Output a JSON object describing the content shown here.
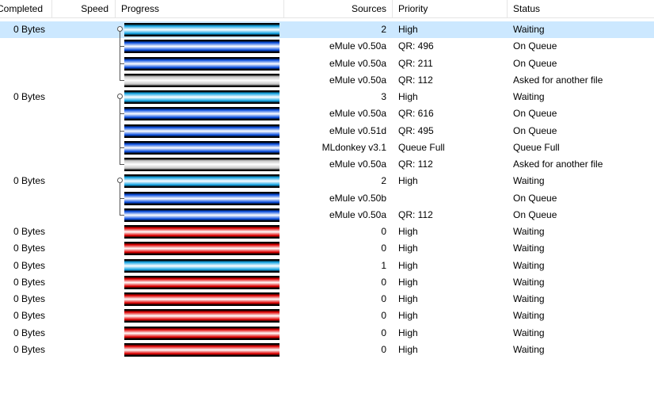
{
  "header": [
    "Completed",
    "Speed",
    "Progress",
    "Sources",
    "Priority",
    "Status"
  ],
  "files": [
    {
      "completed": "0 Bytes",
      "sources": 2,
      "priority": "High",
      "status": "Waiting",
      "bar": "#12a4e4",
      "selected": true,
      "children": [
        {
          "sources": "eMule v0.50a",
          "priority": "QR: 496",
          "status": "On Queue",
          "bar": "#0a4fe0"
        },
        {
          "sources": "eMule v0.50a",
          "priority": "QR: 211",
          "status": "On Queue",
          "bar": "#0a4fe0"
        },
        {
          "sources": "eMule v0.50a",
          "priority": "QR: 112",
          "status": "Asked for another file",
          "bar": "#c4c4c4"
        }
      ]
    },
    {
      "completed": "0 Bytes",
      "sources": 3,
      "priority": "High",
      "status": "Waiting",
      "bar": "#12a4e4",
      "children": [
        {
          "sources": "eMule v0.50a",
          "priority": "QR: 616",
          "status": "On Queue",
          "bar": "#0a4fe0"
        },
        {
          "sources": "eMule v0.51d",
          "priority": "QR: 495",
          "status": "On Queue",
          "bar": "#0a4fe0"
        },
        {
          "sources": "MLdonkey v3.1",
          "priority": "Queue Full",
          "status": "Queue Full",
          "bar": "#0a4fe0"
        },
        {
          "sources": "eMule v0.50a",
          "priority": "QR: 112",
          "status": "Asked for another file",
          "bar": "#c4c4c4"
        }
      ]
    },
    {
      "completed": "0 Bytes",
      "sources": 2,
      "priority": "High",
      "status": "Waiting",
      "bar": "#12a4e4",
      "children": [
        {
          "sources": "eMule v0.50b",
          "status": "On Queue",
          "bar": "#0a4fe0"
        },
        {
          "sources": "eMule v0.50a",
          "priority": "QR: 112",
          "status": "On Queue",
          "bar": "#0a4fe0"
        }
      ]
    },
    {
      "completed": "0 Bytes",
      "sources": 0,
      "priority": "High",
      "status": "Waiting",
      "bar": "#e00000"
    },
    {
      "completed": "0 Bytes",
      "sources": 0,
      "priority": "High",
      "status": "Waiting",
      "bar": "#e00000"
    },
    {
      "completed": "0 Bytes",
      "sources": 1,
      "priority": "High",
      "status": "Waiting",
      "bar": "#12a4e4"
    },
    {
      "completed": "0 Bytes",
      "sources": 0,
      "priority": "High",
      "status": "Waiting",
      "bar": "#e00000"
    },
    {
      "completed": "0 Bytes",
      "sources": 0,
      "priority": "High",
      "status": "Waiting",
      "bar": "#e00000"
    },
    {
      "completed": "0 Bytes",
      "sources": 0,
      "priority": "High",
      "status": "Waiting",
      "bar": "#e00000"
    },
    {
      "completed": "0 Bytes",
      "sources": 0,
      "priority": "High",
      "status": "Waiting",
      "bar": "#e00000"
    },
    {
      "completed": "0 Bytes",
      "sources": 0,
      "priority": "High",
      "status": "Waiting",
      "bar": "#e00000"
    }
  ]
}
